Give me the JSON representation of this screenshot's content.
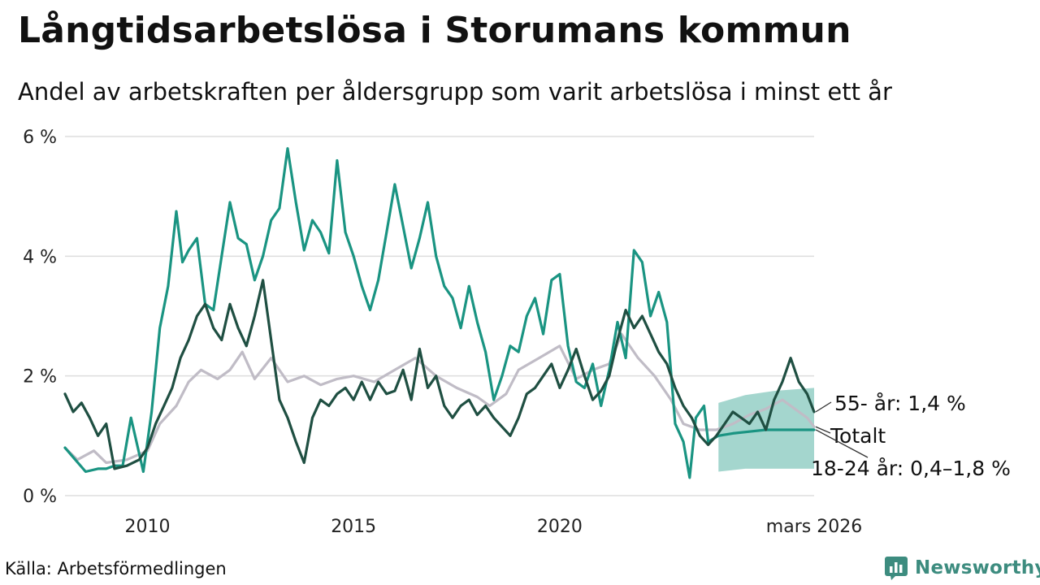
{
  "header": {
    "title": "Långtidsarbetslösa i Storumans kommun",
    "subtitle": "Andel av arbetskraften per åldersgrupp som varit arbetslösa i minst ett år"
  },
  "footer": {
    "source": "Källa: Arbetsförmedlingen",
    "brand": "Newsworthy"
  },
  "colors": {
    "age_18_24": "#1a9482",
    "age_55": "#1f4f42",
    "total": "#c0bcc6",
    "forecast_band": "#9fd4cb",
    "gridline": "#dddddd"
  },
  "chart_data": {
    "type": "line",
    "title": "Långtidsarbetslösa i Storumans kommun",
    "subtitle": "Andel av arbetskraften per åldersgrupp som varit arbetslösa i minst ett år",
    "xlabel": "",
    "ylabel": "",
    "xlim": [
      2008.0,
      2026.17
    ],
    "ylim": [
      0,
      6
    ],
    "y_ticks": [
      {
        "value": 0,
        "label": "0 %"
      },
      {
        "value": 2,
        "label": "2 %"
      },
      {
        "value": 4,
        "label": "4 %"
      },
      {
        "value": 6,
        "label": "6 %"
      }
    ],
    "x_ticks": [
      {
        "value": 2010,
        "label": "2010"
      },
      {
        "value": 2015,
        "label": "2015"
      },
      {
        "value": 2020,
        "label": "2020"
      },
      {
        "value": 2026.17,
        "label": "mars 2026"
      }
    ],
    "series": [
      {
        "name": "Totalt",
        "label": "Totalt",
        "color": "#c0bcc6",
        "points": [
          [
            2008.0,
            0.8
          ],
          [
            2008.3,
            0.6
          ],
          [
            2008.7,
            0.75
          ],
          [
            2009.0,
            0.55
          ],
          [
            2009.5,
            0.6
          ],
          [
            2010.0,
            0.75
          ],
          [
            2010.3,
            1.2
          ],
          [
            2010.7,
            1.5
          ],
          [
            2011.0,
            1.9
          ],
          [
            2011.3,
            2.1
          ],
          [
            2011.7,
            1.95
          ],
          [
            2012.0,
            2.1
          ],
          [
            2012.3,
            2.4
          ],
          [
            2012.6,
            1.95
          ],
          [
            2013.0,
            2.3
          ],
          [
            2013.4,
            1.9
          ],
          [
            2013.8,
            2.0
          ],
          [
            2014.2,
            1.85
          ],
          [
            2014.6,
            1.95
          ],
          [
            2015.0,
            2.0
          ],
          [
            2015.5,
            1.9
          ],
          [
            2016.0,
            2.1
          ],
          [
            2016.5,
            2.3
          ],
          [
            2017.0,
            2.0
          ],
          [
            2017.5,
            1.8
          ],
          [
            2018.0,
            1.65
          ],
          [
            2018.3,
            1.5
          ],
          [
            2018.7,
            1.7
          ],
          [
            2019.0,
            2.1
          ],
          [
            2019.5,
            2.3
          ],
          [
            2020.0,
            2.5
          ],
          [
            2020.4,
            1.95
          ],
          [
            2020.8,
            2.1
          ],
          [
            2021.2,
            2.2
          ],
          [
            2021.5,
            2.7
          ],
          [
            2021.9,
            2.3
          ],
          [
            2022.3,
            2.0
          ],
          [
            2022.7,
            1.6
          ],
          [
            2023.0,
            1.2
          ],
          [
            2023.4,
            1.1
          ],
          [
            2023.8,
            1.1
          ],
          [
            2024.2,
            1.2
          ],
          [
            2024.6,
            1.35
          ],
          [
            2025.0,
            1.45
          ],
          [
            2025.4,
            1.6
          ],
          [
            2025.7,
            1.45
          ],
          [
            2026.0,
            1.3
          ],
          [
            2026.17,
            1.15
          ]
        ]
      },
      {
        "name": "18-24 år",
        "label": "18-24 år: 0,4–1,8 %",
        "color": "#1a9482",
        "points": [
          [
            2008.0,
            0.8
          ],
          [
            2008.25,
            0.6
          ],
          [
            2008.5,
            0.4
          ],
          [
            2008.8,
            0.45
          ],
          [
            2009.0,
            0.45
          ],
          [
            2009.2,
            0.5
          ],
          [
            2009.4,
            0.5
          ],
          [
            2009.6,
            1.3
          ],
          [
            2009.9,
            0.4
          ],
          [
            2010.1,
            1.4
          ],
          [
            2010.3,
            2.8
          ],
          [
            2010.5,
            3.5
          ],
          [
            2010.7,
            4.75
          ],
          [
            2010.85,
            3.9
          ],
          [
            2011.0,
            4.1
          ],
          [
            2011.2,
            4.3
          ],
          [
            2011.4,
            3.2
          ],
          [
            2011.6,
            3.1
          ],
          [
            2011.8,
            4.0
          ],
          [
            2012.0,
            4.9
          ],
          [
            2012.2,
            4.3
          ],
          [
            2012.4,
            4.2
          ],
          [
            2012.6,
            3.6
          ],
          [
            2012.8,
            4.0
          ],
          [
            2013.0,
            4.6
          ],
          [
            2013.2,
            4.8
          ],
          [
            2013.4,
            5.8
          ],
          [
            2013.6,
            4.9
          ],
          [
            2013.8,
            4.1
          ],
          [
            2014.0,
            4.6
          ],
          [
            2014.2,
            4.4
          ],
          [
            2014.4,
            4.05
          ],
          [
            2014.6,
            5.6
          ],
          [
            2014.8,
            4.4
          ],
          [
            2015.0,
            4.0
          ],
          [
            2015.2,
            3.5
          ],
          [
            2015.4,
            3.1
          ],
          [
            2015.6,
            3.6
          ],
          [
            2015.8,
            4.4
          ],
          [
            2016.0,
            5.2
          ],
          [
            2016.2,
            4.5
          ],
          [
            2016.4,
            3.8
          ],
          [
            2016.6,
            4.3
          ],
          [
            2016.8,
            4.9
          ],
          [
            2017.0,
            4.0
          ],
          [
            2017.2,
            3.5
          ],
          [
            2017.4,
            3.3
          ],
          [
            2017.6,
            2.8
          ],
          [
            2017.8,
            3.5
          ],
          [
            2018.0,
            2.9
          ],
          [
            2018.2,
            2.4
          ],
          [
            2018.4,
            1.6
          ],
          [
            2018.6,
            2.0
          ],
          [
            2018.8,
            2.5
          ],
          [
            2019.0,
            2.4
          ],
          [
            2019.2,
            3.0
          ],
          [
            2019.4,
            3.3
          ],
          [
            2019.6,
            2.7
          ],
          [
            2019.8,
            3.6
          ],
          [
            2020.0,
            3.7
          ],
          [
            2020.2,
            2.5
          ],
          [
            2020.4,
            1.9
          ],
          [
            2020.6,
            1.8
          ],
          [
            2020.8,
            2.2
          ],
          [
            2021.0,
            1.5
          ],
          [
            2021.2,
            2.1
          ],
          [
            2021.4,
            2.9
          ],
          [
            2021.6,
            2.3
          ],
          [
            2021.8,
            4.1
          ],
          [
            2022.0,
            3.9
          ],
          [
            2022.2,
            3.0
          ],
          [
            2022.4,
            3.4
          ],
          [
            2022.6,
            2.9
          ],
          [
            2022.8,
            1.2
          ],
          [
            2023.0,
            0.9
          ],
          [
            2023.15,
            0.3
          ],
          [
            2023.3,
            1.3
          ],
          [
            2023.5,
            1.5
          ],
          [
            2023.6,
            0.9
          ],
          [
            2023.85,
            1.0
          ],
          [
            2024.2,
            1.04
          ],
          [
            2024.6,
            1.07
          ],
          [
            2025.0,
            1.1
          ],
          [
            2025.4,
            1.1
          ],
          [
            2025.8,
            1.1
          ],
          [
            2026.17,
            1.1
          ]
        ]
      },
      {
        "name": "55- år",
        "label": "55- år: 1,4 %",
        "color": "#1f4f42",
        "points": [
          [
            2008.0,
            1.7
          ],
          [
            2008.2,
            1.4
          ],
          [
            2008.4,
            1.55
          ],
          [
            2008.6,
            1.3
          ],
          [
            2008.8,
            1.0
          ],
          [
            2009.0,
            1.2
          ],
          [
            2009.2,
            0.45
          ],
          [
            2009.5,
            0.5
          ],
          [
            2009.8,
            0.6
          ],
          [
            2010.0,
            0.8
          ],
          [
            2010.2,
            1.2
          ],
          [
            2010.4,
            1.5
          ],
          [
            2010.6,
            1.8
          ],
          [
            2010.8,
            2.3
          ],
          [
            2011.0,
            2.6
          ],
          [
            2011.2,
            3.0
          ],
          [
            2011.4,
            3.2
          ],
          [
            2011.6,
            2.8
          ],
          [
            2011.8,
            2.6
          ],
          [
            2012.0,
            3.2
          ],
          [
            2012.2,
            2.8
          ],
          [
            2012.4,
            2.5
          ],
          [
            2012.6,
            3.0
          ],
          [
            2012.8,
            3.6
          ],
          [
            2013.0,
            2.6
          ],
          [
            2013.2,
            1.6
          ],
          [
            2013.4,
            1.3
          ],
          [
            2013.6,
            0.9
          ],
          [
            2013.8,
            0.55
          ],
          [
            2014.0,
            1.3
          ],
          [
            2014.2,
            1.6
          ],
          [
            2014.4,
            1.5
          ],
          [
            2014.6,
            1.7
          ],
          [
            2014.8,
            1.8
          ],
          [
            2015.0,
            1.6
          ],
          [
            2015.2,
            1.9
          ],
          [
            2015.4,
            1.6
          ],
          [
            2015.6,
            1.9
          ],
          [
            2015.8,
            1.7
          ],
          [
            2016.0,
            1.75
          ],
          [
            2016.2,
            2.1
          ],
          [
            2016.4,
            1.6
          ],
          [
            2016.6,
            2.45
          ],
          [
            2016.8,
            1.8
          ],
          [
            2017.0,
            2.0
          ],
          [
            2017.2,
            1.5
          ],
          [
            2017.4,
            1.3
          ],
          [
            2017.6,
            1.5
          ],
          [
            2017.8,
            1.6
          ],
          [
            2018.0,
            1.35
          ],
          [
            2018.2,
            1.5
          ],
          [
            2018.4,
            1.3
          ],
          [
            2018.6,
            1.15
          ],
          [
            2018.8,
            1.0
          ],
          [
            2019.0,
            1.3
          ],
          [
            2019.2,
            1.7
          ],
          [
            2019.4,
            1.8
          ],
          [
            2019.6,
            2.0
          ],
          [
            2019.8,
            2.2
          ],
          [
            2020.0,
            1.8
          ],
          [
            2020.2,
            2.1
          ],
          [
            2020.4,
            2.45
          ],
          [
            2020.6,
            2.0
          ],
          [
            2020.8,
            1.6
          ],
          [
            2021.0,
            1.75
          ],
          [
            2021.2,
            2.0
          ],
          [
            2021.4,
            2.6
          ],
          [
            2021.6,
            3.1
          ],
          [
            2021.8,
            2.8
          ],
          [
            2022.0,
            3.0
          ],
          [
            2022.2,
            2.7
          ],
          [
            2022.4,
            2.4
          ],
          [
            2022.6,
            2.2
          ],
          [
            2022.8,
            1.8
          ],
          [
            2023.0,
            1.5
          ],
          [
            2023.2,
            1.3
          ],
          [
            2023.4,
            1.0
          ],
          [
            2023.6,
            0.85
          ],
          [
            2023.8,
            1.0
          ],
          [
            2024.0,
            1.2
          ],
          [
            2024.2,
            1.4
          ],
          [
            2024.4,
            1.3
          ],
          [
            2024.6,
            1.2
          ],
          [
            2024.8,
            1.4
          ],
          [
            2025.0,
            1.1
          ],
          [
            2025.2,
            1.6
          ],
          [
            2025.4,
            1.9
          ],
          [
            2025.6,
            2.3
          ],
          [
            2025.8,
            1.9
          ],
          [
            2026.0,
            1.7
          ],
          [
            2026.17,
            1.4
          ]
        ]
      }
    ],
    "forecast_band": {
      "series": "18-24 år",
      "points": [
        [
          2023.85,
          0.4,
          1.55
        ],
        [
          2024.5,
          0.45,
          1.68
        ],
        [
          2025.2,
          0.45,
          1.75
        ],
        [
          2026.17,
          0.45,
          1.8
        ]
      ]
    }
  }
}
